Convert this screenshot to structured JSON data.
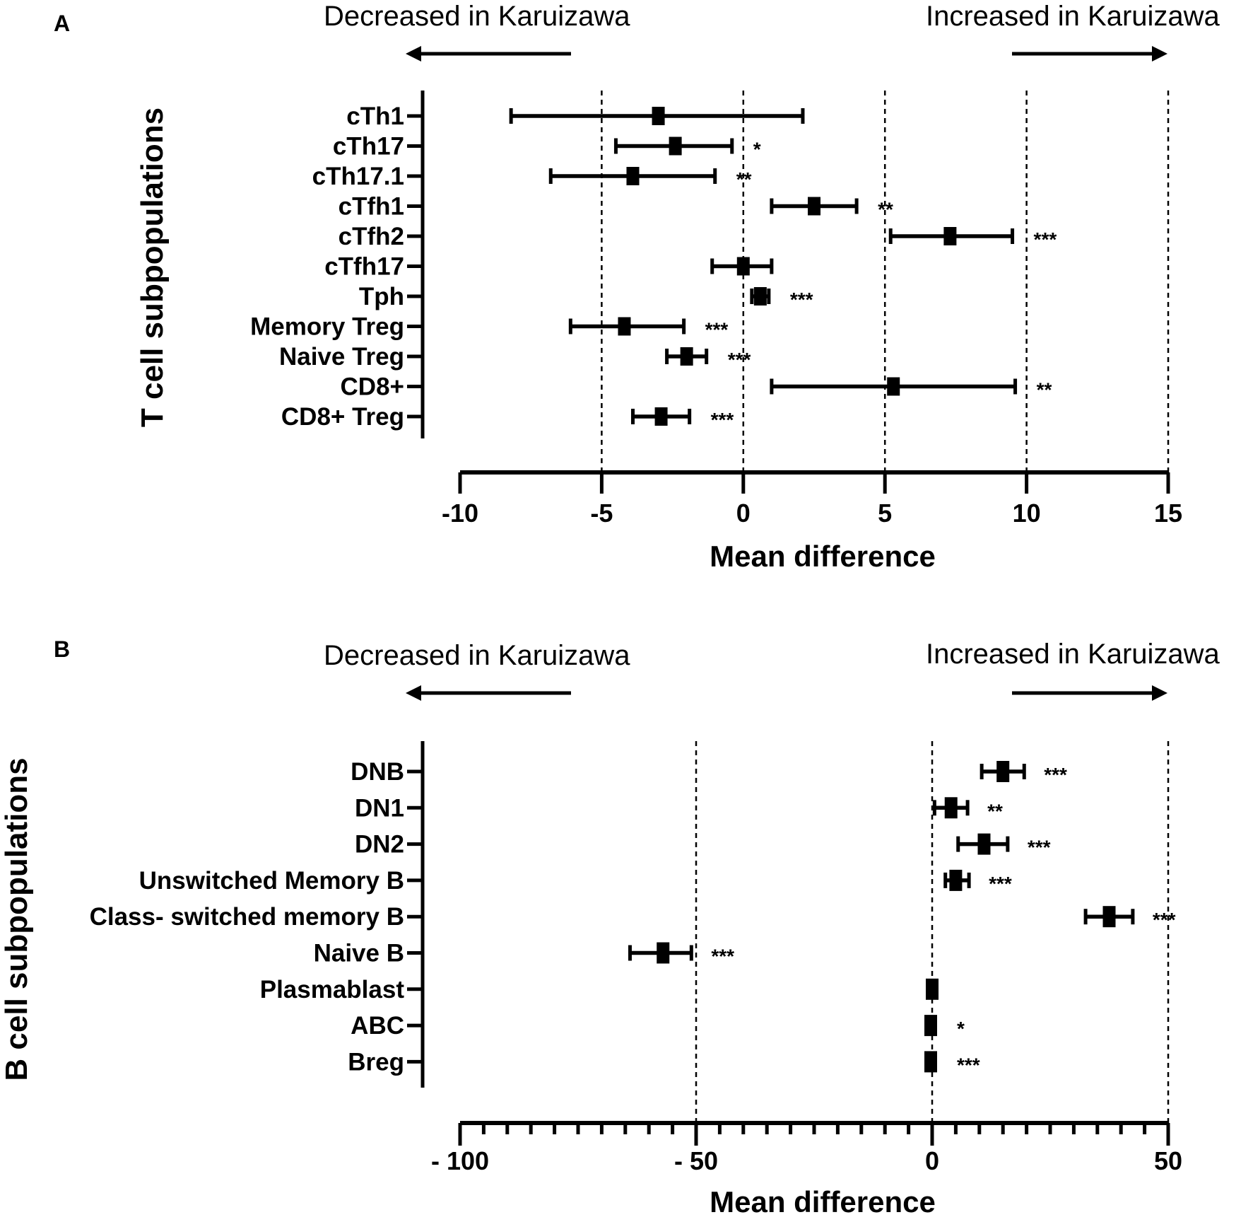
{
  "chart_data": [
    {
      "type": "forest",
      "panel_label": "A",
      "direction_labels": {
        "left": "Decreased in Karuizawa",
        "right": "Increased in Karuizawa"
      },
      "ylabel": "T cell subpopulations",
      "xlabel": "Mean difference",
      "xlim": [
        -10,
        15
      ],
      "xticks": [
        -10,
        -5,
        0,
        5,
        10,
        15
      ],
      "xtick_labels": [
        "-10",
        "-5",
        "0",
        "5",
        "10",
        "15"
      ],
      "reference_lines": [
        -5,
        0,
        5,
        10,
        15
      ],
      "rows": [
        {
          "label": "cTh1",
          "mean": -3.0,
          "low": -8.2,
          "high": 2.1,
          "sig": ""
        },
        {
          "label": "cTh17",
          "mean": -2.4,
          "low": -4.5,
          "high": -0.4,
          "sig": "*"
        },
        {
          "label": "cTh17.1",
          "mean": -3.9,
          "low": -6.8,
          "high": -1.0,
          "sig": "**"
        },
        {
          "label": "cTfh1",
          "mean": 2.5,
          "low": 1.0,
          "high": 4.0,
          "sig": "**"
        },
        {
          "label": "cTfh2",
          "mean": 7.3,
          "low": 5.2,
          "high": 9.5,
          "sig": "***"
        },
        {
          "label": "cTfh17",
          "mean": 0.0,
          "low": -1.1,
          "high": 1.0,
          "sig": ""
        },
        {
          "label": "Tph",
          "mean": 0.6,
          "low": 0.3,
          "high": 0.9,
          "sig": "***"
        },
        {
          "label": "Memory Treg",
          "mean": -4.2,
          "low": -6.1,
          "high": -2.1,
          "sig": "***"
        },
        {
          "label": "Naive Treg",
          "mean": -2.0,
          "low": -2.7,
          "high": -1.3,
          "sig": "***"
        },
        {
          "label": "CD8+",
          "mean": 5.3,
          "low": 1.0,
          "high": 9.6,
          "sig": "**"
        },
        {
          "label": "CD8+ Treg",
          "mean": -2.9,
          "low": -3.9,
          "high": -1.9,
          "sig": "***"
        }
      ]
    },
    {
      "type": "forest",
      "panel_label": "B",
      "direction_labels": {
        "left": "Decreased in Karuizawa",
        "right": "Increased in Karuizawa"
      },
      "ylabel": "B cell subpopulations",
      "xlabel": "Mean difference",
      "xlim": [
        -100,
        50
      ],
      "xticks": [
        -100,
        -50,
        0,
        50
      ],
      "xtick_labels": [
        "- 100",
        "- 50",
        "0",
        "50"
      ],
      "minor_tick_step": 5,
      "reference_lines": [
        -50,
        0,
        50
      ],
      "rows": [
        {
          "label": "DNB",
          "mean": 15.0,
          "low": 10.5,
          "high": 19.5,
          "sig": "***"
        },
        {
          "label": "DN1",
          "mean": 4.0,
          "low": 0.5,
          "high": 7.5,
          "sig": "**"
        },
        {
          "label": "DN2",
          "mean": 11.0,
          "low": 5.5,
          "high": 16.0,
          "sig": "***"
        },
        {
          "label": "Unswitched Memory B",
          "mean": 5.0,
          "low": 2.8,
          "high": 7.8,
          "sig": "***"
        },
        {
          "label": "Class- switched memory B",
          "mean": 37.5,
          "low": 32.5,
          "high": 42.5,
          "sig": "***"
        },
        {
          "label": "Naive B",
          "mean": -57.0,
          "low": -64.0,
          "high": -51.0,
          "sig": "***"
        },
        {
          "label": "Plasmablast",
          "mean": 0.0,
          "low": 0.0,
          "high": 0.0,
          "sig": ""
        },
        {
          "label": "ABC",
          "mean": -0.3,
          "low": -0.3,
          "high": -0.3,
          "sig": "*"
        },
        {
          "label": "Breg",
          "mean": -0.3,
          "low": -0.3,
          "high": -0.3,
          "sig": "***"
        }
      ]
    }
  ]
}
